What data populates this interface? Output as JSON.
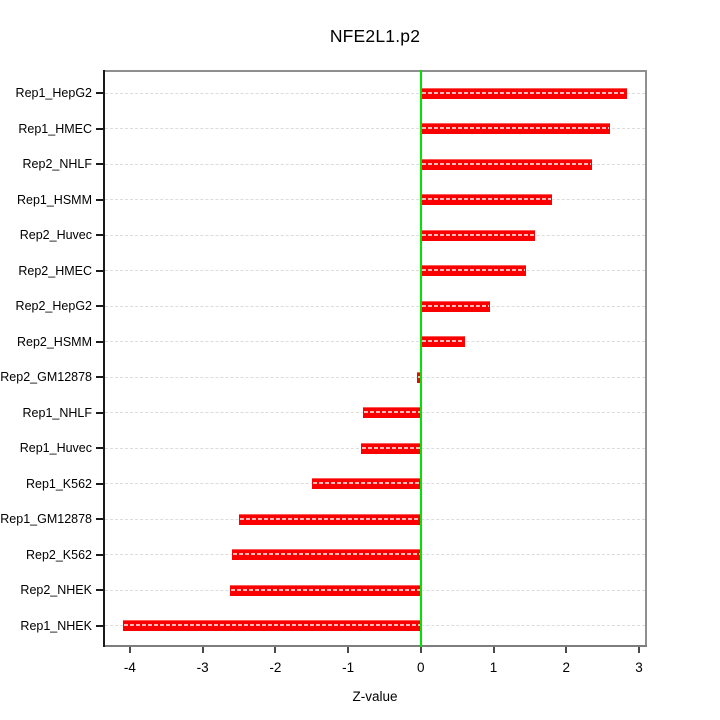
{
  "figure": {
    "title": "NFE2L1.p2",
    "xlabel": "Z-value"
  },
  "chart_data": {
    "type": "bar",
    "orientation": "horizontal",
    "title": "NFE2L1.p2",
    "xlabel": "Z-value",
    "ylabel": "",
    "legend": "none",
    "grid": "dashed horizontal line per category",
    "xticks": [
      -4,
      -3,
      -2,
      -1,
      0,
      1,
      2,
      3
    ],
    "xlim": [
      -4.37,
      3.11
    ],
    "zero_line_x": 0,
    "categories_top_to_bottom": [
      "Rep1_HepG2",
      "Rep1_HMEC",
      "Rep2_NHLF",
      "Rep1_HSMM",
      "Rep2_Huvec",
      "Rep2_HMEC",
      "Rep2_HepG2",
      "Rep2_HSMM",
      "Rep2_GM12878",
      "Rep1_NHLF",
      "Rep1_Huvec",
      "Rep1_K562",
      "Rep1_GM12878",
      "Rep2_K562",
      "Rep2_NHEK",
      "Rep1_NHEK"
    ],
    "values": [
      2.84,
      2.6,
      2.36,
      1.8,
      1.57,
      1.45,
      0.95,
      0.61,
      -0.05,
      -0.79,
      -0.82,
      -1.5,
      -2.5,
      -2.59,
      -2.63,
      -4.1
    ],
    "colors": {
      "bar": "#fa0000",
      "bar_dash": "#ffb9b9",
      "zero_line": "#00e400",
      "grid": "#dcdcdc",
      "box_border": "#8f8f8f",
      "box_border_bottom": "#7d7d7d",
      "axis_left": "#1a1a1a",
      "x_tick": "#4a4a4a",
      "text": "#000000",
      "background": "#ffffff"
    }
  }
}
